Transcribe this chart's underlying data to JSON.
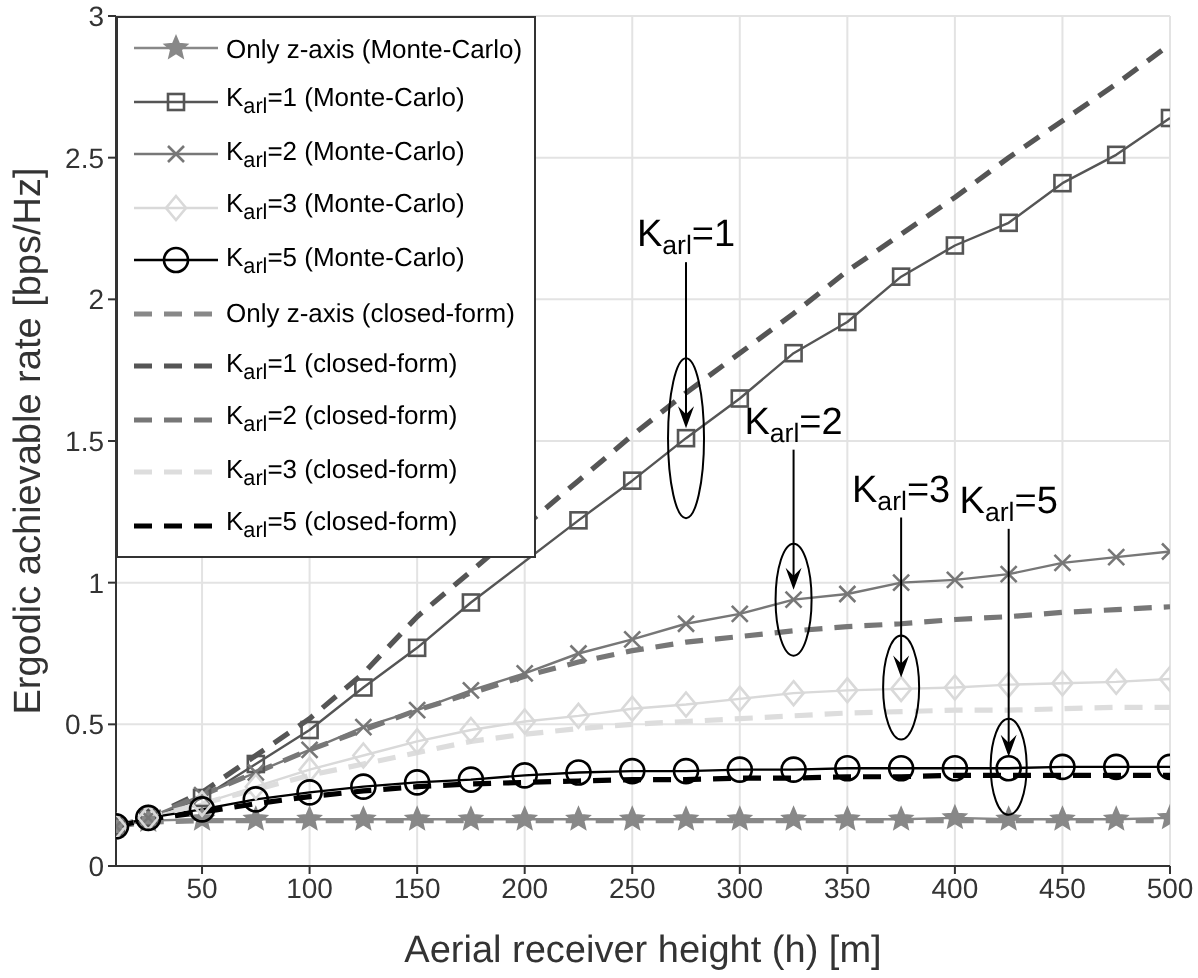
{
  "chart_data": {
    "type": "line",
    "xlabel": "Aerial receiver height (h) [m]",
    "ylabel": "Ergodic achievable rate [bps/Hz]",
    "x": [
      10,
      25,
      50,
      75,
      100,
      125,
      150,
      175,
      200,
      225,
      250,
      275,
      300,
      325,
      350,
      375,
      400,
      425,
      450,
      475,
      500
    ],
    "xlim": [
      10,
      500
    ],
    "xticks": [
      50,
      100,
      150,
      200,
      250,
      300,
      350,
      400,
      450,
      500
    ],
    "ylim": [
      0,
      3
    ],
    "yticks": [
      0,
      0.5,
      1,
      1.5,
      2,
      2.5,
      3
    ],
    "grid": true,
    "legend": "top left",
    "series": [
      {
        "name": "Only z-axis (Monte-Carlo)",
        "color": "#888888",
        "marker": "star",
        "line_style": "solid",
        "values": [
          0.14,
          0.16,
          0.165,
          0.165,
          0.165,
          0.165,
          0.165,
          0.165,
          0.165,
          0.165,
          0.165,
          0.165,
          0.165,
          0.165,
          0.165,
          0.165,
          0.17,
          0.165,
          0.165,
          0.165,
          0.17
        ]
      },
      {
        "name": "K$_{arl}$=1 (Monte-Carlo)",
        "color": "#555555",
        "marker": "square",
        "line_style": "solid",
        "values": [
          0.14,
          0.17,
          0.24,
          0.36,
          0.48,
          0.63,
          0.77,
          0.93,
          null,
          1.22,
          1.36,
          1.51,
          1.65,
          1.81,
          1.92,
          2.08,
          2.19,
          2.27,
          2.41,
          2.51,
          2.64
        ]
      },
      {
        "name": "K$_{arl}$=2 (Monte-Carlo)",
        "color": "#777777",
        "marker": "cross",
        "line_style": "solid",
        "values": [
          0.14,
          0.17,
          0.25,
          0.33,
          0.41,
          0.49,
          0.55,
          0.62,
          0.68,
          0.75,
          0.8,
          0.855,
          0.89,
          0.94,
          0.96,
          1.0,
          1.01,
          1.03,
          1.07,
          1.09,
          1.11
        ]
      },
      {
        "name": "K$_{arl}$=3 (Monte-Carlo)",
        "color": "#d9d9d9",
        "marker": "diamond",
        "line_style": "solid",
        "values": [
          0.14,
          0.17,
          0.22,
          0.28,
          0.34,
          0.39,
          0.44,
          0.48,
          0.51,
          0.53,
          0.555,
          0.57,
          0.59,
          0.61,
          0.62,
          0.625,
          0.63,
          0.64,
          0.645,
          0.65,
          0.66
        ]
      },
      {
        "name": "K$_{arl}$=5 (Monte-Carlo)",
        "color": "#000000",
        "marker": "circle",
        "line_style": "solid",
        "values": [
          0.14,
          0.17,
          0.2,
          0.235,
          0.26,
          0.28,
          0.295,
          0.305,
          0.32,
          0.33,
          0.335,
          0.335,
          0.34,
          0.34,
          0.345,
          0.345,
          0.345,
          0.345,
          0.35,
          0.35,
          0.35
        ]
      },
      {
        "name": "Only z-axis (closed-form)",
        "color": "#888888",
        "marker": "none",
        "line_style": "dashed",
        "values": [
          0.14,
          0.155,
          0.16,
          0.16,
          0.16,
          0.16,
          0.16,
          0.16,
          0.16,
          0.16,
          0.16,
          0.16,
          0.16,
          0.16,
          0.16,
          0.16,
          0.16,
          0.16,
          0.16,
          0.16,
          0.16
        ]
      },
      {
        "name": "K$_{arl}$=1 (closed-form)",
        "color": "#555555",
        "marker": "none",
        "line_style": "dashed",
        "values": [
          0.14,
          0.17,
          0.26,
          0.39,
          0.52,
          0.68,
          0.88,
          null,
          null,
          1.36,
          1.52,
          1.67,
          1.81,
          1.95,
          2.1,
          2.23,
          2.36,
          2.5,
          2.63,
          2.76,
          2.9
        ]
      },
      {
        "name": "K$_{arl}$=2 (closed-form)",
        "color": "#777777",
        "marker": "none",
        "line_style": "dashed",
        "values": [
          0.14,
          0.17,
          0.25,
          0.33,
          0.41,
          0.48,
          0.55,
          0.61,
          0.67,
          0.72,
          0.76,
          0.79,
          0.81,
          0.83,
          0.845,
          0.855,
          0.87,
          0.88,
          0.895,
          0.905,
          0.915
        ]
      },
      {
        "name": "K$_{arl}$=3 (closed-form)",
        "color": "#dddddd",
        "marker": "none",
        "line_style": "dashed",
        "values": [
          0.14,
          0.17,
          0.22,
          0.27,
          0.32,
          0.36,
          0.4,
          0.44,
          0.465,
          0.485,
          0.5,
          0.51,
          0.52,
          0.53,
          0.54,
          0.545,
          0.55,
          0.55,
          0.555,
          0.56,
          0.56
        ]
      },
      {
        "name": "K$_{arl}$=5 (closed-form)",
        "color": "#000000",
        "marker": "none",
        "line_style": "dashed",
        "values": [
          0.14,
          0.165,
          0.19,
          0.22,
          0.245,
          0.265,
          0.28,
          0.29,
          0.295,
          0.3,
          0.305,
          0.305,
          0.31,
          0.31,
          0.315,
          0.315,
          0.32,
          0.32,
          0.32,
          0.32,
          0.32
        ]
      }
    ],
    "annotations": [
      {
        "text": "K$_{arl}$=1",
        "x": 275,
        "y": 1.51
      },
      {
        "text": "K$_{arl}$=2",
        "x": 325,
        "y": 0.94
      },
      {
        "text": "K$_{arl}$=3",
        "x": 375,
        "y": 0.63
      },
      {
        "text": "K$_{arl}$=5",
        "x": 425,
        "y": 0.35
      }
    ]
  }
}
